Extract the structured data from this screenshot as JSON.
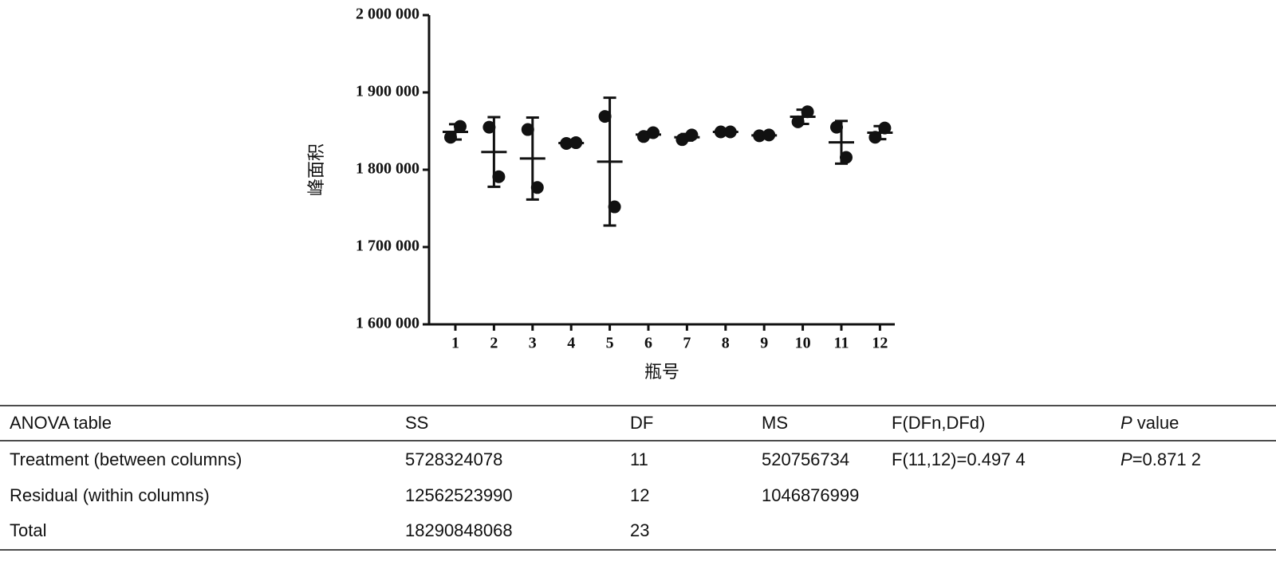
{
  "chart_data": {
    "type": "dot",
    "xlabel": "瓶号",
    "ylabel": "峰面积",
    "categories": [
      "1",
      "2",
      "3",
      "4",
      "5",
      "6",
      "7",
      "8",
      "9",
      "10",
      "11",
      "12"
    ],
    "points": [
      [
        1842000,
        1856000
      ],
      [
        1855000,
        1791000
      ],
      [
        1852000,
        1777000
      ],
      [
        1834000,
        1835000
      ],
      [
        1869000,
        1752000
      ],
      [
        1843000,
        1848000
      ],
      [
        1839000,
        1845000
      ],
      [
        1849000,
        1849000
      ],
      [
        1844000,
        1845000
      ],
      [
        1862000,
        1875000
      ],
      [
        1855000,
        1816000
      ],
      [
        1842000,
        1854000
      ]
    ],
    "mean": [
      1849000,
      1823000,
      1814500,
      1834500,
      1810500,
      1845500,
      1842000,
      1849000,
      1844500,
      1868500,
      1835500,
      1848000
    ],
    "sd": [
      9900,
      45000,
      53000,
      700,
      82700,
      3500,
      4200,
      0,
      700,
      9200,
      27600,
      8500
    ],
    "color": "#111111",
    "ylim": [
      1600000,
      2000000
    ],
    "yticks": [
      {
        "value": 1600000,
        "label": "1 600 000"
      },
      {
        "value": 1700000,
        "label": "1 700 000"
      },
      {
        "value": 1800000,
        "label": "1 800 000"
      },
      {
        "value": 1900000,
        "label": "1 900 000"
      },
      {
        "value": 2000000,
        "label": "2 000 000"
      }
    ]
  },
  "table": {
    "header": [
      "ANOVA table",
      "SS",
      "DF",
      "MS",
      "F(DFn,DFd)",
      "P value"
    ],
    "rows": [
      [
        "Treatment (between columns)",
        "5728324078",
        "11",
        "520756734",
        "F(11,12)=0.497 4",
        "P=0.871 2"
      ],
      [
        "Residual (within columns)",
        "12562523990",
        "12",
        "1046876999"
      ],
      [
        "Total",
        "18290848068",
        "23"
      ]
    ]
  }
}
